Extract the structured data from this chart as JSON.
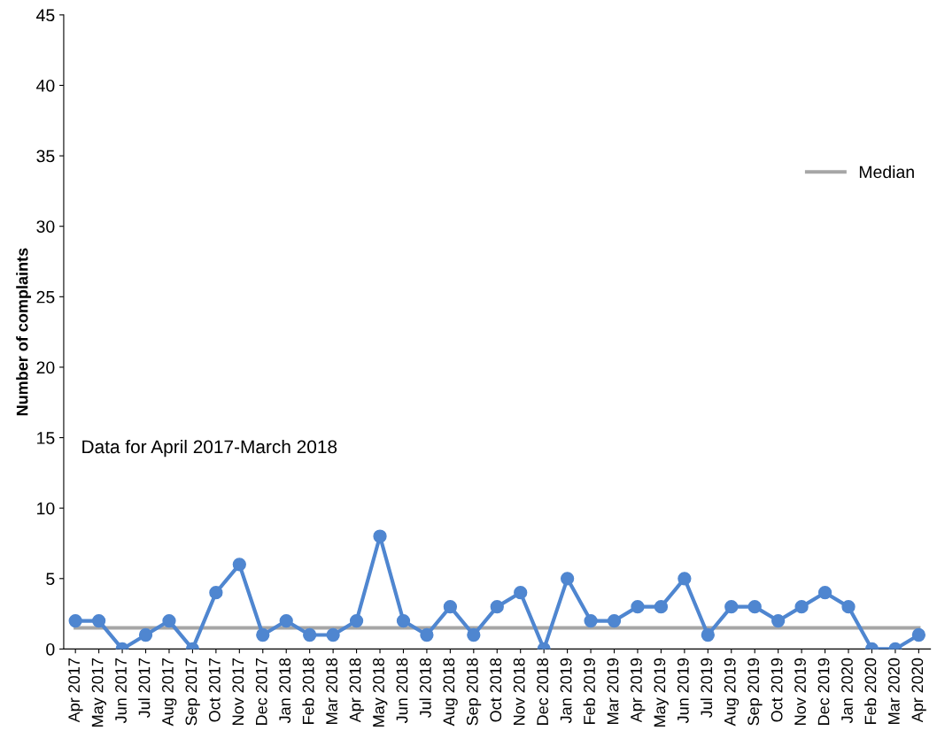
{
  "chart_data": {
    "type": "line",
    "ylabel": "Number of complaints",
    "categories": [
      "Apr 2017",
      "May 2017",
      "Jun 2017",
      "Jul 2017",
      "Aug 2017",
      "Sep 2017",
      "Oct 2017",
      "Nov 2017",
      "Dec 2017",
      "Jan 2018",
      "Feb 2018",
      "Mar 2018",
      "Apr 2018",
      "May 2018",
      "Jun 2018",
      "Jul 2018",
      "Aug 2018",
      "Sep 2018",
      "Oct 2018",
      "Nov 2018",
      "Dec 2018",
      "Jan 2019",
      "Feb 2019",
      "Mar 2019",
      "Apr 2019",
      "May 2019",
      "Jun 2019",
      "Jul 2019",
      "Aug 2019",
      "Sep 2019",
      "Oct 2019",
      "Nov 2019",
      "Dec 2019",
      "Jan 2020",
      "Feb 2020",
      "Mar 2020",
      "Apr 2020"
    ],
    "series": [
      {
        "color": "#4f86d0",
        "marker": "circle",
        "values": [
          2,
          2,
          0,
          1,
          2,
          0,
          4,
          6,
          1,
          2,
          1,
          1,
          2,
          8,
          2,
          1,
          3,
          1,
          3,
          4,
          0,
          5,
          2,
          2,
          3,
          3,
          5,
          1,
          3,
          3,
          2,
          3,
          4,
          3,
          0,
          0,
          1
        ]
      },
      {
        "name": "Median",
        "color": "#a6a6a6",
        "marker": "none",
        "values": [
          1.5,
          1.5,
          1.5,
          1.5,
          1.5,
          1.5,
          1.5,
          1.5,
          1.5,
          1.5,
          1.5,
          1.5,
          1.5,
          1.5,
          1.5,
          1.5,
          1.5,
          1.5,
          1.5,
          1.5,
          1.5,
          1.5,
          1.5,
          1.5,
          1.5,
          1.5,
          1.5,
          1.5,
          1.5,
          1.5,
          1.5,
          1.5,
          1.5,
          1.5,
          1.5,
          1.5,
          1.5
        ]
      }
    ],
    "ylim": [
      0,
      45
    ],
    "yticks": [
      0,
      5,
      10,
      15,
      20,
      25,
      30,
      35,
      40,
      45
    ],
    "annotations": [
      "Data for April 2017-March 2018"
    ],
    "legend": "right",
    "grid": false
  }
}
